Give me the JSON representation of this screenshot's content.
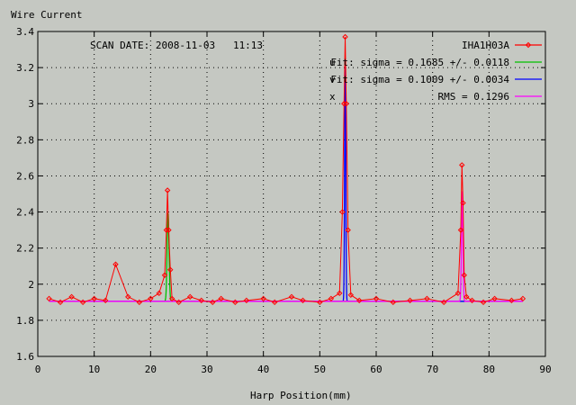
{
  "chart_data": {
    "type": "line",
    "ylabel": "Wire Current",
    "xlabel": "Harp Position(mm)",
    "annotation": "SCAN DATE: 2008-11-03   11:13",
    "xlim": [
      0,
      90
    ],
    "ylim": [
      1.6,
      3.4
    ],
    "x_ticks": [
      0,
      10,
      20,
      30,
      40,
      50,
      60,
      70,
      80,
      90
    ],
    "y_ticks": [
      1.6,
      1.8,
      2,
      2.2,
      2.4,
      2.6,
      2.8,
      3,
      3.2,
      3.4
    ],
    "grid": true,
    "legend_position": "top-right",
    "baseline": 1.905,
    "series": [
      {
        "name": "IHA1H03A",
        "color": "#ff0000",
        "x": [
          2,
          4,
          6,
          8,
          10,
          12,
          13.8,
          16,
          18,
          20,
          21.5,
          22.5,
          22.8,
          23.0,
          23.2,
          23.5,
          23.8,
          25,
          27,
          29,
          31,
          32.5,
          35,
          37,
          40,
          42,
          45,
          47,
          50,
          52,
          53.5,
          54.0,
          54.3,
          54.5,
          54.7,
          55.0,
          55.5,
          57,
          60,
          63,
          66,
          69,
          72,
          74.5,
          75.0,
          75.2,
          75.4,
          75.6,
          76.0,
          77,
          79,
          81,
          84,
          86
        ],
        "y": [
          1.92,
          1.9,
          1.93,
          1.9,
          1.92,
          1.91,
          2.11,
          1.93,
          1.9,
          1.92,
          1.95,
          2.05,
          2.3,
          2.52,
          2.3,
          2.08,
          1.92,
          1.9,
          1.93,
          1.91,
          1.9,
          1.92,
          1.9,
          1.91,
          1.92,
          1.9,
          1.93,
          1.91,
          1.9,
          1.92,
          1.95,
          2.4,
          3.0,
          3.37,
          3.0,
          2.3,
          1.94,
          1.91,
          1.92,
          1.9,
          1.91,
          1.92,
          1.9,
          1.95,
          2.3,
          2.66,
          2.45,
          2.05,
          1.93,
          1.91,
          1.9,
          1.92,
          1.91,
          1.92
        ]
      },
      {
        "name": "Fit: sigma = 0.1685 +/- 0.0118",
        "marker_label": "u",
        "color": "#00c000",
        "peak": {
          "center": 23.1,
          "sigma": 0.1685,
          "amplitude": 0.49,
          "x_range": [
            21.8,
            24.4
          ]
        }
      },
      {
        "name": "Fit: sigma = 0.1009 +/- 0.0034",
        "marker_label": "v",
        "color": "#0000ff",
        "peak": {
          "center": 54.5,
          "sigma": 0.1009,
          "amplitude": 1.31,
          "x_range": [
            53.2,
            55.8
          ]
        }
      },
      {
        "name": "RMS  = 0.1296",
        "marker_label": "x",
        "color": "#ff00ff",
        "peak": {
          "center": 75.25,
          "sigma": 0.1296,
          "amplitude": 0.61,
          "x_range": [
            74.2,
            76.3
          ]
        }
      }
    ]
  }
}
